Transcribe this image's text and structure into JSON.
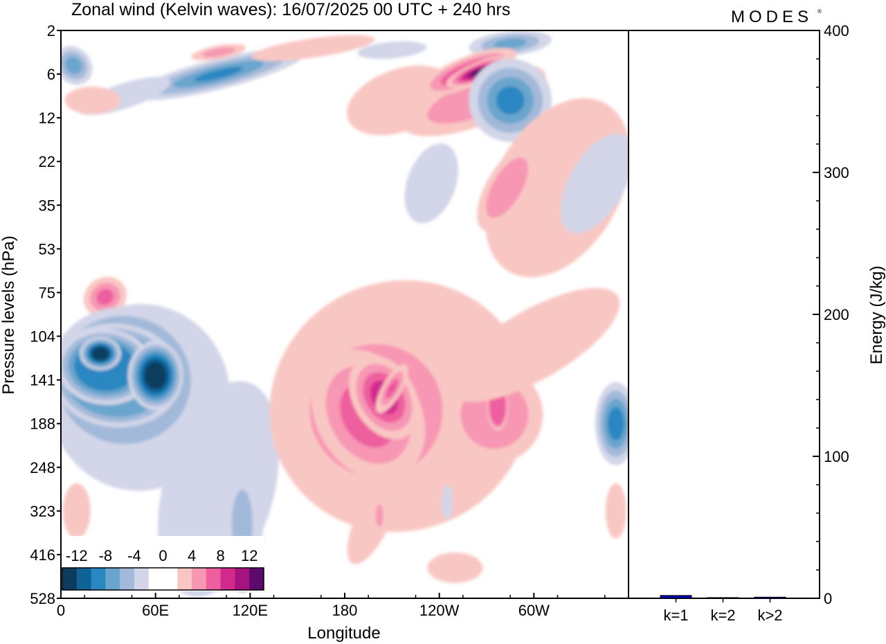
{
  "title": "Zonal wind (Kelvin waves):  16/07/2025  00 UTC  + 240 hrs",
  "logo": "MODES",
  "logo_mark": "®",
  "chart_data": [
    {
      "type": "heatmap",
      "title": "Zonal wind (Kelvin waves):  16/07/2025  00 UTC  + 240 hrs",
      "xlabel": "Longitude",
      "ylabel": "Pressure levels (hPa)",
      "x_ticks": [
        {
          "lon": 0,
          "label": "0"
        },
        {
          "lon": 60,
          "label": "60E"
        },
        {
          "lon": 120,
          "label": "120E"
        },
        {
          "lon": 180,
          "label": "180"
        },
        {
          "lon": 240,
          "label": "120W"
        },
        {
          "lon": 300,
          "label": "60W"
        }
      ],
      "xlim": [
        0,
        360
      ],
      "y_levels": [
        "2",
        "6",
        "12",
        "22",
        "35",
        "53",
        "75",
        "104",
        "141",
        "188",
        "248",
        "323",
        "416",
        "528"
      ],
      "grid": false,
      "colorbar": {
        "labels": [
          "-12",
          "-8",
          "-4",
          "0",
          "4",
          "8",
          "12"
        ],
        "colors": [
          "#0c3d5e",
          "#0f6397",
          "#2b87c1",
          "#6aa5cd",
          "#a3b9d9",
          "#d2d6e8",
          "#ffffff",
          "#ffffff",
          "#f9c7c3",
          "#f797b4",
          "#ee5f9f",
          "#d22a8c",
          "#a5137f",
          "#5c0a6e"
        ],
        "placement": "bottom-left"
      },
      "anomalies": [
        {
          "sign": "positive",
          "peak": 12,
          "lon": 255,
          "level": "6"
        },
        {
          "sign": "negative",
          "peak": -12,
          "lon": 27,
          "level": "104"
        },
        {
          "sign": "negative",
          "peak": -12,
          "lon": 50,
          "level": "141"
        },
        {
          "sign": "positive",
          "peak": 10,
          "lon": 195,
          "level": "141"
        },
        {
          "sign": "positive",
          "peak": 6,
          "lon": 275,
          "level": "35"
        },
        {
          "sign": "negative",
          "peak": -8,
          "lon": 100,
          "level": "6"
        },
        {
          "sign": "negative",
          "peak": -6,
          "lon": 280,
          "level": "12"
        },
        {
          "sign": "negative",
          "peak": -6,
          "lon": 355,
          "level": "188"
        }
      ]
    },
    {
      "type": "bar",
      "categories": [
        "k=1",
        "k=2",
        "k>2"
      ],
      "values": [
        2,
        0.5,
        0.8
      ],
      "ylabel": "Energy (J/kg)",
      "ylim": [
        0,
        400
      ],
      "y_ticks": [
        0,
        100,
        200,
        300,
        400
      ],
      "bar_color": "#0000aa"
    }
  ]
}
